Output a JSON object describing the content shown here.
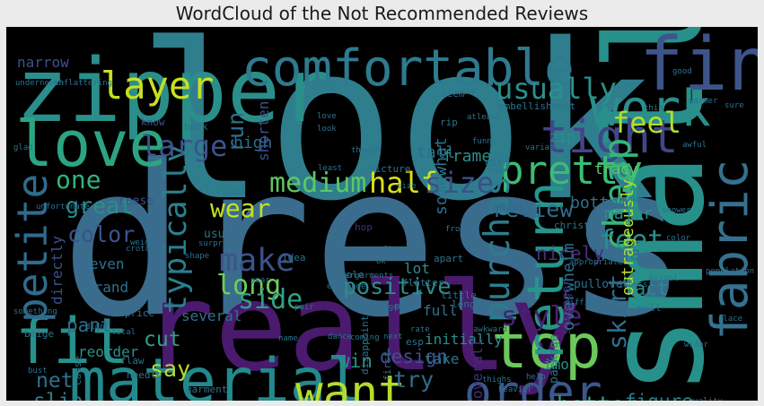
{
  "chart_data": {
    "type": "wordcloud",
    "title": "WordCloud of the Not Recommended Reviews",
    "background": "#000000",
    "colormap": "viridis",
    "words": [
      {
        "text": "look",
        "weight": 1.0,
        "color": "#2f7e8e"
      },
      {
        "text": "dress",
        "weight": 0.97,
        "color": "#3a6c8d"
      },
      {
        "text": "small",
        "weight": 0.62,
        "color": "#27908b"
      },
      {
        "text": "really",
        "weight": 0.56,
        "color": "#4a1a6e"
      },
      {
        "text": "zipper",
        "weight": 0.4,
        "color": "#2a8f8a"
      },
      {
        "text": "find",
        "weight": 0.33,
        "color": "#3d548b"
      },
      {
        "text": "love",
        "weight": 0.28,
        "color": "#2ca483"
      },
      {
        "text": "fit",
        "weight": 0.28,
        "color": "#27918b"
      },
      {
        "text": "material",
        "weight": 0.27,
        "color": "#23898d"
      },
      {
        "text": "top",
        "weight": 0.27,
        "color": "#6bc95a"
      },
      {
        "text": "comfortable",
        "weight": 0.22,
        "color": "#2e7a8e"
      },
      {
        "text": "work",
        "weight": 0.22,
        "color": "#2a8f8a"
      },
      {
        "text": "return",
        "weight": 0.22,
        "color": "#26968a"
      },
      {
        "text": "fabric",
        "weight": 0.22,
        "color": "#35718e"
      },
      {
        "text": "order",
        "weight": 0.2,
        "color": "#3b588c"
      },
      {
        "text": "want",
        "weight": 0.2,
        "color": "#b4dd2b"
      },
      {
        "text": "tight",
        "weight": 0.2,
        "color": "#404688"
      },
      {
        "text": "petite",
        "weight": 0.18,
        "color": "#2f6b8e"
      },
      {
        "text": "pretty",
        "weight": 0.17,
        "color": "#3cbc74"
      },
      {
        "text": "layer",
        "weight": 0.16,
        "color": "#c7e020"
      },
      {
        "text": "cheap",
        "weight": 0.16,
        "color": "#34b679"
      },
      {
        "text": "purchase",
        "weight": 0.15,
        "color": "#2c7c8e"
      },
      {
        "text": "make",
        "weight": 0.13,
        "color": "#3c538b"
      },
      {
        "text": "typically",
        "weight": 0.13,
        "color": "#2a7f8e"
      },
      {
        "text": "large",
        "weight": 0.12,
        "color": "#3c548b"
      },
      {
        "text": "usually",
        "weight": 0.12,
        "color": "#2b8f8c"
      },
      {
        "text": "feel",
        "weight": 0.12,
        "color": "#b5de2b"
      },
      {
        "text": "half",
        "weight": 0.12,
        "color": "#d8e219"
      },
      {
        "text": "size",
        "weight": 0.12,
        "color": "#3c4f8a"
      },
      {
        "text": "long",
        "weight": 0.11,
        "color": "#6ccd5a"
      },
      {
        "text": "medium",
        "weight": 0.11,
        "color": "#5cc863"
      },
      {
        "text": "feet",
        "weight": 0.11,
        "color": "#2a8f8a"
      },
      {
        "text": "side",
        "weight": 0.11,
        "color": "#2ea286"
      },
      {
        "text": "style",
        "weight": 0.11,
        "color": "#482173"
      },
      {
        "text": "skirt",
        "weight": 0.1,
        "color": "#2e6e8e"
      },
      {
        "text": "wear",
        "weight": 0.1,
        "color": "#c5e021"
      },
      {
        "text": "one",
        "weight": 0.1,
        "color": "#2fb47c"
      },
      {
        "text": "great",
        "weight": 0.09,
        "color": "#2a8f8a"
      },
      {
        "text": "run",
        "weight": 0.09,
        "color": "#2e6e8e"
      },
      {
        "text": "color",
        "weight": 0.09,
        "color": "#3b528b"
      },
      {
        "text": "review",
        "weight": 0.09,
        "color": "#2e6d8e"
      },
      {
        "text": "positive",
        "weight": 0.09,
        "color": "#2a8f8a"
      },
      {
        "text": "say",
        "weight": 0.09,
        "color": "#b8de29"
      },
      {
        "text": "better",
        "weight": 0.09,
        "color": "#2ea286"
      },
      {
        "text": "try",
        "weight": 0.09,
        "color": "#2e6e8e"
      },
      {
        "text": "slip",
        "weight": 0.08,
        "color": "#26818e"
      },
      {
        "text": "net",
        "weight": 0.08,
        "color": "#2c728e"
      },
      {
        "text": "cut",
        "weight": 0.08,
        "color": "#2ea286"
      },
      {
        "text": "pant",
        "weight": 0.07,
        "color": "#2e6e8e"
      },
      {
        "text": "win",
        "weight": 0.07,
        "color": "#2a8f8a"
      },
      {
        "text": "design",
        "weight": 0.07,
        "color": "#3c508b"
      },
      {
        "text": "figure",
        "weight": 0.07,
        "color": "#26818e"
      },
      {
        "text": "wide",
        "weight": 0.07,
        "color": "#2e6e8e"
      },
      {
        "text": "nicely",
        "weight": 0.07,
        "color": "#472d7b"
      },
      {
        "text": "fact",
        "weight": 0.07,
        "color": "#2a8f8a"
      },
      {
        "text": "overwhelm",
        "weight": 0.06,
        "color": "#2c728e"
      },
      {
        "text": "outrageously",
        "weight": 0.06,
        "color": "#b5de2b"
      },
      {
        "text": "high",
        "weight": 0.06,
        "color": "#2e6e8e"
      },
      {
        "text": "tall",
        "weight": 0.06,
        "color": "#2e6e8e"
      },
      {
        "text": "frame",
        "weight": 0.06,
        "color": "#2a8f8a"
      },
      {
        "text": "somewhat",
        "weight": 0.06,
        "color": "#2c728e"
      },
      {
        "text": "bottom",
        "weight": 0.06,
        "color": "#2e6e8e"
      },
      {
        "text": "major",
        "weight": 0.06,
        "color": "#2a8f8a"
      },
      {
        "text": "shorten",
        "weight": 0.05,
        "color": "#3b528b"
      },
      {
        "text": "narrow",
        "weight": 0.05,
        "color": "#3b528b"
      },
      {
        "text": "tracy",
        "weight": 0.05,
        "color": "#5ec962"
      },
      {
        "text": "zip",
        "weight": 0.05,
        "color": "#2a8f8a"
      },
      {
        "text": "directly",
        "weight": 0.05,
        "color": "#3b528b"
      },
      {
        "text": "several",
        "weight": 0.05,
        "color": "#2c728e"
      },
      {
        "text": "reorder",
        "weight": 0.05,
        "color": "#2a8f8a"
      },
      {
        "text": "brand",
        "weight": 0.05,
        "color": "#2c728e"
      },
      {
        "text": "even",
        "weight": 0.05,
        "color": "#2c728e"
      },
      {
        "text": "lot",
        "weight": 0.05,
        "color": "#2a8f8a"
      },
      {
        "text": "full",
        "weight": 0.05,
        "color": "#2c728e"
      },
      {
        "text": "initially",
        "weight": 0.05,
        "color": "#2a8f8a"
      },
      {
        "text": "overall",
        "weight": 0.05,
        "color": "#472d7b"
      },
      {
        "text": "take",
        "weight": 0.05,
        "color": "#2c728e"
      },
      {
        "text": "imo",
        "weight": 0.05,
        "color": "#2a8f8a"
      },
      {
        "text": "package",
        "weight": 0.04,
        "color": "#2c728e"
      },
      {
        "text": "stranger",
        "weight": 0.04,
        "color": "#472d7b"
      },
      {
        "text": "pullover",
        "weight": 0.04,
        "color": "#2c728e"
      },
      {
        "text": "usual",
        "weight": 0.04,
        "color": "#2c728e"
      },
      {
        "text": "reese",
        "weight": 0.04,
        "color": "#3b528b"
      },
      {
        "text": "alterations",
        "weight": 0.04,
        "color": "#2c728e"
      },
      {
        "text": "embellishment",
        "weight": 0.03,
        "color": "#2c728e"
      },
      {
        "text": "christ",
        "weight": 0.03,
        "color": "#2c728e"
      },
      {
        "text": "hop",
        "weight": 0.03,
        "color": "#472d7b"
      },
      {
        "text": "seem",
        "weight": 0.03,
        "color": "#2c728e"
      },
      {
        "text": "rip",
        "weight": 0.03,
        "color": "#2c728e"
      },
      {
        "text": "back",
        "weight": 0.03,
        "color": "#2c728e"
      },
      {
        "text": "know",
        "weight": 0.03,
        "color": "#3b528b"
      },
      {
        "text": "flaw",
        "weight": 0.03,
        "color": "#2c728e"
      },
      {
        "text": "needle",
        "weight": 0.03,
        "color": "#2c728e"
      },
      {
        "text": "garment",
        "weight": 0.03,
        "color": "#2c728e"
      },
      {
        "text": "disappoint",
        "weight": 0.03,
        "color": "#2c728e"
      },
      {
        "text": "esp",
        "weight": 0.03,
        "color": "#2c728e"
      },
      {
        "text": "puff",
        "weight": 0.03,
        "color": "#2c728e"
      },
      {
        "text": "first",
        "weight": 0.03,
        "color": "#2c728e"
      },
      {
        "text": "cause",
        "weight": 0.03,
        "color": "#2c728e"
      },
      {
        "text": "price",
        "weight": 0.03,
        "color": "#2c728e"
      },
      {
        "text": "length",
        "weight": 0.03,
        "color": "#2c728e"
      },
      {
        "text": "little",
        "weight": 0.03,
        "color": "#2c728e"
      },
      {
        "text": "apart",
        "weight": 0.03,
        "color": "#2c728e"
      },
      {
        "text": "idea",
        "weight": 0.03,
        "color": "#2c728e"
      },
      {
        "text": "flatter",
        "weight": 0.03,
        "color": "#2c728e"
      },
      {
        "text": "hole",
        "weight": 0.03,
        "color": "#2c728e"
      },
      {
        "text": "beige",
        "weight": 0.03,
        "color": "#2c728e"
      },
      {
        "text": "picture",
        "weight": 0.03,
        "color": "#2c728e"
      },
      {
        "text": "cute",
        "weight": 0.03,
        "color": "#2c728e"
      },
      {
        "text": "pull",
        "weight": 0.03,
        "color": "#2c728e"
      },
      {
        "text": "underneath",
        "weight": 0.02,
        "color": "#2c728e"
      },
      {
        "text": "unflattering",
        "weight": 0.02,
        "color": "#2c728e"
      },
      {
        "text": "funny",
        "weight": 0.02,
        "color": "#2c728e"
      },
      {
        "text": "atleast",
        "weight": 0.02,
        "color": "#2c728e"
      },
      {
        "text": "though",
        "weight": 0.02,
        "color": "#2c728e"
      },
      {
        "text": "weight",
        "weight": 0.02,
        "color": "#2c728e"
      },
      {
        "text": "surprise",
        "weight": 0.02,
        "color": "#2c728e"
      },
      {
        "text": "shape",
        "weight": 0.02,
        "color": "#2c728e"
      },
      {
        "text": "crotch",
        "weight": 0.02,
        "color": "#2c728e"
      },
      {
        "text": "undergarments",
        "weight": 0.02,
        "color": "#2c728e"
      },
      {
        "text": "exchange",
        "weight": 0.02,
        "color": "#2c728e"
      },
      {
        "text": "population",
        "weight": 0.02,
        "color": "#2c728e"
      },
      {
        "text": "encourage",
        "weight": 0.02,
        "color": "#2c728e"
      },
      {
        "text": "difficult",
        "weight": 0.02,
        "color": "#2c728e"
      },
      {
        "text": "impossible",
        "weight": 0.02,
        "color": "#2c728e"
      },
      {
        "text": "bridal",
        "weight": 0.02,
        "color": "#2c728e"
      },
      {
        "text": "appropriate",
        "weight": 0.02,
        "color": "#2c728e"
      },
      {
        "text": "unfortunate",
        "weight": 0.02,
        "color": "#2c728e"
      },
      {
        "text": "slinky",
        "weight": 0.02,
        "color": "#2c728e"
      },
      {
        "text": "heavier",
        "weight": 0.02,
        "color": "#2c728e"
      },
      {
        "text": "thighs",
        "weight": 0.02,
        "color": "#2c728e"
      },
      {
        "text": "awkward",
        "weight": 0.02,
        "color": "#2c728e"
      },
      {
        "text": "something",
        "weight": 0.02,
        "color": "#2c728e"
      },
      {
        "text": "fall",
        "weight": 0.02,
        "color": "#2c728e"
      },
      {
        "text": "place",
        "weight": 0.02,
        "color": "#2c728e"
      },
      {
        "text": "help",
        "weight": 0.02,
        "color": "#2c728e"
      },
      {
        "text": "store",
        "weight": 0.02,
        "color": "#2c728e"
      },
      {
        "text": "buy",
        "weight": 0.02,
        "color": "#2c728e"
      },
      {
        "text": "shower",
        "weight": 0.02,
        "color": "#2c728e"
      },
      {
        "text": "sure",
        "weight": 0.02,
        "color": "#2c728e"
      },
      {
        "text": "glad",
        "weight": 0.02,
        "color": "#2c728e"
      },
      {
        "text": "jeans",
        "weight": 0.02,
        "color": "#2c728e"
      },
      {
        "text": "least",
        "weight": 0.02,
        "color": "#2c728e"
      },
      {
        "text": "year",
        "weight": 0.02,
        "color": "#2c728e"
      },
      {
        "text": "rate",
        "weight": 0.02,
        "color": "#2c728e"
      },
      {
        "text": "didnt",
        "weight": 0.02,
        "color": "#2c728e"
      },
      {
        "text": "look",
        "weight": 0.02,
        "color": "#2c728e"
      },
      {
        "text": "ok",
        "weight": 0.02,
        "color": "#2c728e"
      },
      {
        "text": "fine",
        "weight": 0.02,
        "color": "#2c728e"
      },
      {
        "text": "size",
        "weight": 0.02,
        "color": "#2c728e"
      },
      {
        "text": "bust",
        "weight": 0.02,
        "color": "#2c728e"
      },
      {
        "text": "wider",
        "weight": 0.02,
        "color": "#2c728e"
      },
      {
        "text": "still",
        "weight": 0.02,
        "color": "#2c728e"
      },
      {
        "text": "color",
        "weight": 0.02,
        "color": "#2c728e"
      },
      {
        "text": "pair",
        "weight": 0.02,
        "color": "#2c728e"
      },
      {
        "text": "front",
        "weight": 0.02,
        "color": "#2c728e"
      },
      {
        "text": "next",
        "weight": 0.02,
        "color": "#2c728e"
      },
      {
        "text": "awful",
        "weight": 0.02,
        "color": "#2c728e"
      },
      {
        "text": "good",
        "weight": 0.02,
        "color": "#2c728e"
      },
      {
        "text": "warmer",
        "weight": 0.02,
        "color": "#2c728e"
      },
      {
        "text": "thin",
        "weight": 0.02,
        "color": "#2c728e"
      },
      {
        "text": "quality",
        "weight": 0.02,
        "color": "#2c728e"
      },
      {
        "text": "variable",
        "weight": 0.02,
        "color": "#2c728e"
      },
      {
        "text": "coming",
        "weight": 0.02,
        "color": "#2c728e"
      },
      {
        "text": "name",
        "weight": 0.02,
        "color": "#2c728e"
      },
      {
        "text": "total",
        "weight": 0.02,
        "color": "#2c728e"
      },
      {
        "text": "love",
        "weight": 0.02,
        "color": "#2c728e"
      },
      {
        "text": "dance",
        "weight": 0.02,
        "color": "#2c728e"
      },
      {
        "text": "seem",
        "weight": 0.02,
        "color": "#2c728e"
      }
    ]
  }
}
